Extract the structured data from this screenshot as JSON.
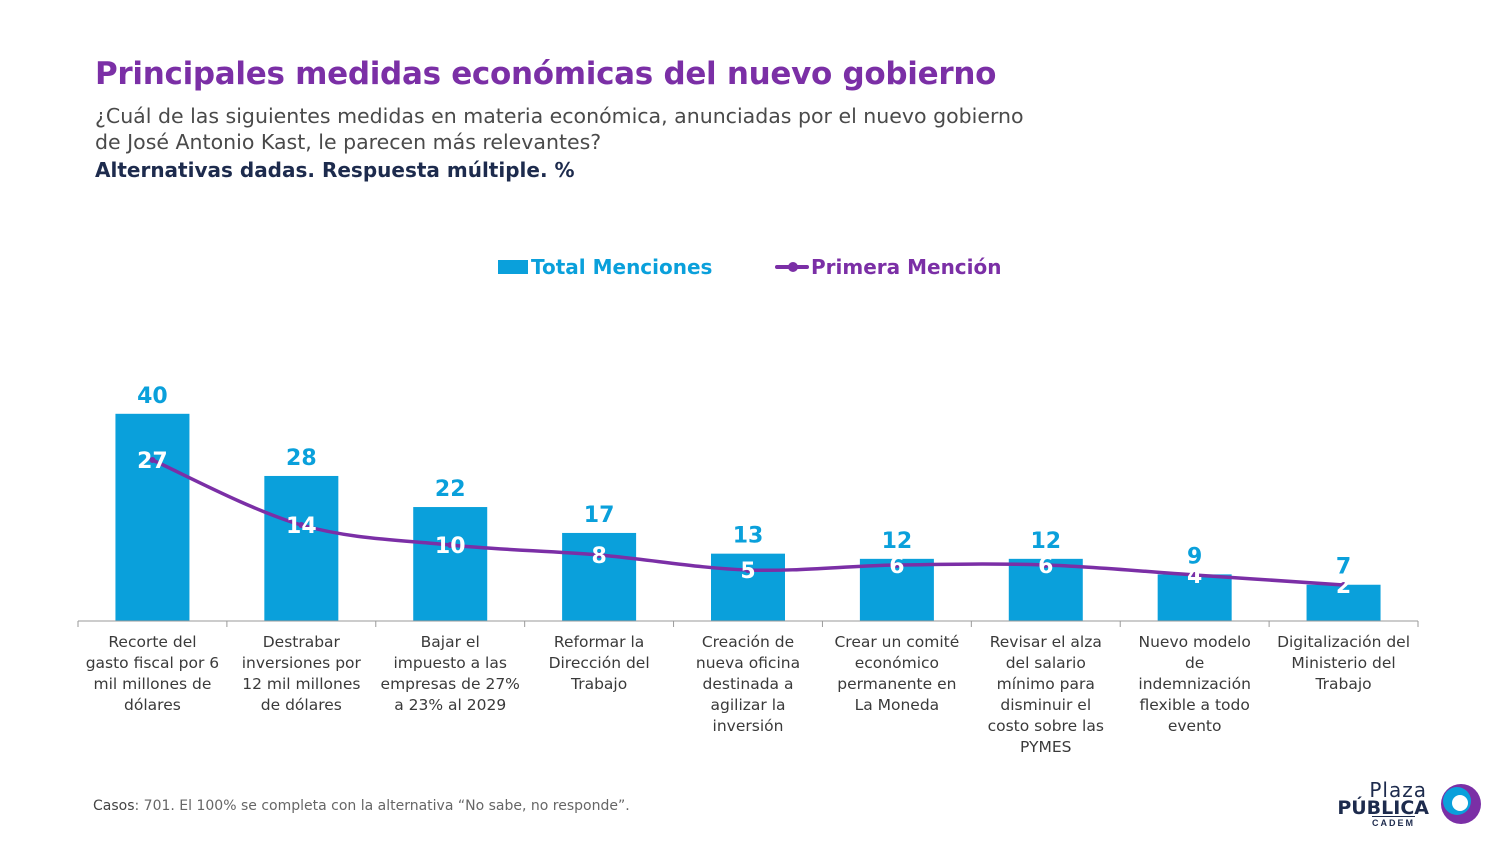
{
  "title": "Principales medidas económicas del nuevo gobierno",
  "subtitle_line1": "¿Cuál de las siguientes medidas en materia económica, anunciadas por el nuevo gobierno",
  "subtitle_line2": "de José Antonio Kast, le parecen más relevantes?",
  "subnote": "Alternativas dadas. Respuesta múltiple. %",
  "footnote_label": "Casos",
  "footnote_text": ": 701. El 100% se completa con la alternativa “No sabe, no responde”.",
  "logo": {
    "line1": "Plaza",
    "line2": "PÚBLICA",
    "line3": "CADEM"
  },
  "colors": {
    "bar": "#0aa0db",
    "line": "#7b2fa6",
    "title": "#7b2fa6"
  },
  "chart_data": {
    "type": "bar",
    "categories": [
      [
        "Recorte del",
        "gasto fiscal por 6",
        "mil millones de",
        "dólares"
      ],
      [
        "Destrabar",
        "inversiones por",
        "12 mil millones",
        "de dólares"
      ],
      [
        "Bajar el",
        "impuesto a las",
        "empresas de 27%",
        "a 23% al 2029"
      ],
      [
        "Reformar la",
        "Dirección del",
        "Trabajo"
      ],
      [
        "Creación de",
        "nueva oficina",
        "destinada a",
        "agilizar la",
        "inversión"
      ],
      [
        "Crear un comité",
        "económico",
        "permanente en",
        "La Moneda"
      ],
      [
        "Revisar el alza",
        "del salario",
        "mínimo para",
        "disminuir el",
        "costo sobre las",
        "PYMES"
      ],
      [
        "Nuevo modelo",
        "de",
        "indemnización",
        "flexible a todo",
        "evento"
      ],
      [
        "Digitalización del",
        "Ministerio del",
        "Trabajo"
      ]
    ],
    "series": [
      {
        "name": "Total Menciones",
        "kind": "bar",
        "values": [
          40,
          28,
          22,
          17,
          13,
          12,
          12,
          9,
          7
        ]
      },
      {
        "name": "Primera Mención",
        "kind": "line",
        "values": [
          27,
          14,
          10,
          8,
          5,
          6,
          6,
          4,
          2
        ]
      }
    ],
    "legend_position": "top-center",
    "grid": false
  }
}
